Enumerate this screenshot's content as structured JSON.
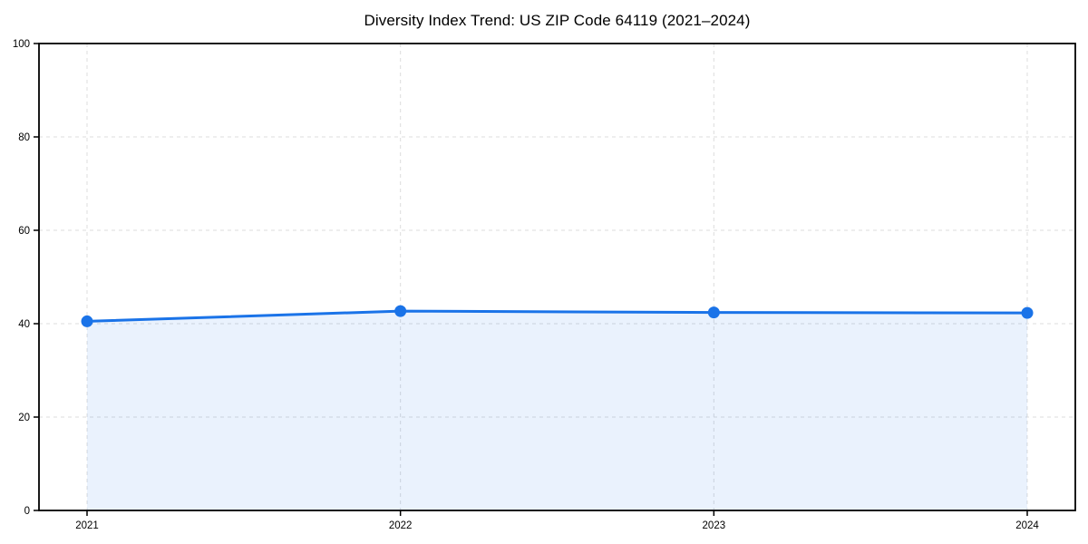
{
  "title": "Diversity Index Trend: US ZIP Code 64119 (2021–2024)",
  "chart_data": {
    "type": "line",
    "title": "Diversity Index Trend: US ZIP Code 64119 (2021–2024)",
    "x": [
      "2021",
      "2022",
      "2023",
      "2024"
    ],
    "series": [
      {
        "name": "Diversity Index",
        "values": [
          40.5,
          42.7,
          42.4,
          42.3
        ]
      }
    ],
    "xlabel": "",
    "ylabel": "",
    "ylim": [
      0,
      100
    ],
    "yticks": [
      0,
      20,
      40,
      60,
      80,
      100
    ],
    "grid": true,
    "grid_style": "dashed",
    "legend": false,
    "area_fill": true,
    "marker": "circle",
    "colors": {
      "line": "#1a73e8",
      "marker": "#1a73e8",
      "area_fill": "#1a73e8",
      "area_fill_opacity": 0.09,
      "grid": "#dcdcdc",
      "spine": "#000000",
      "tick_text": "#000000",
      "background": "#ffffff"
    }
  }
}
